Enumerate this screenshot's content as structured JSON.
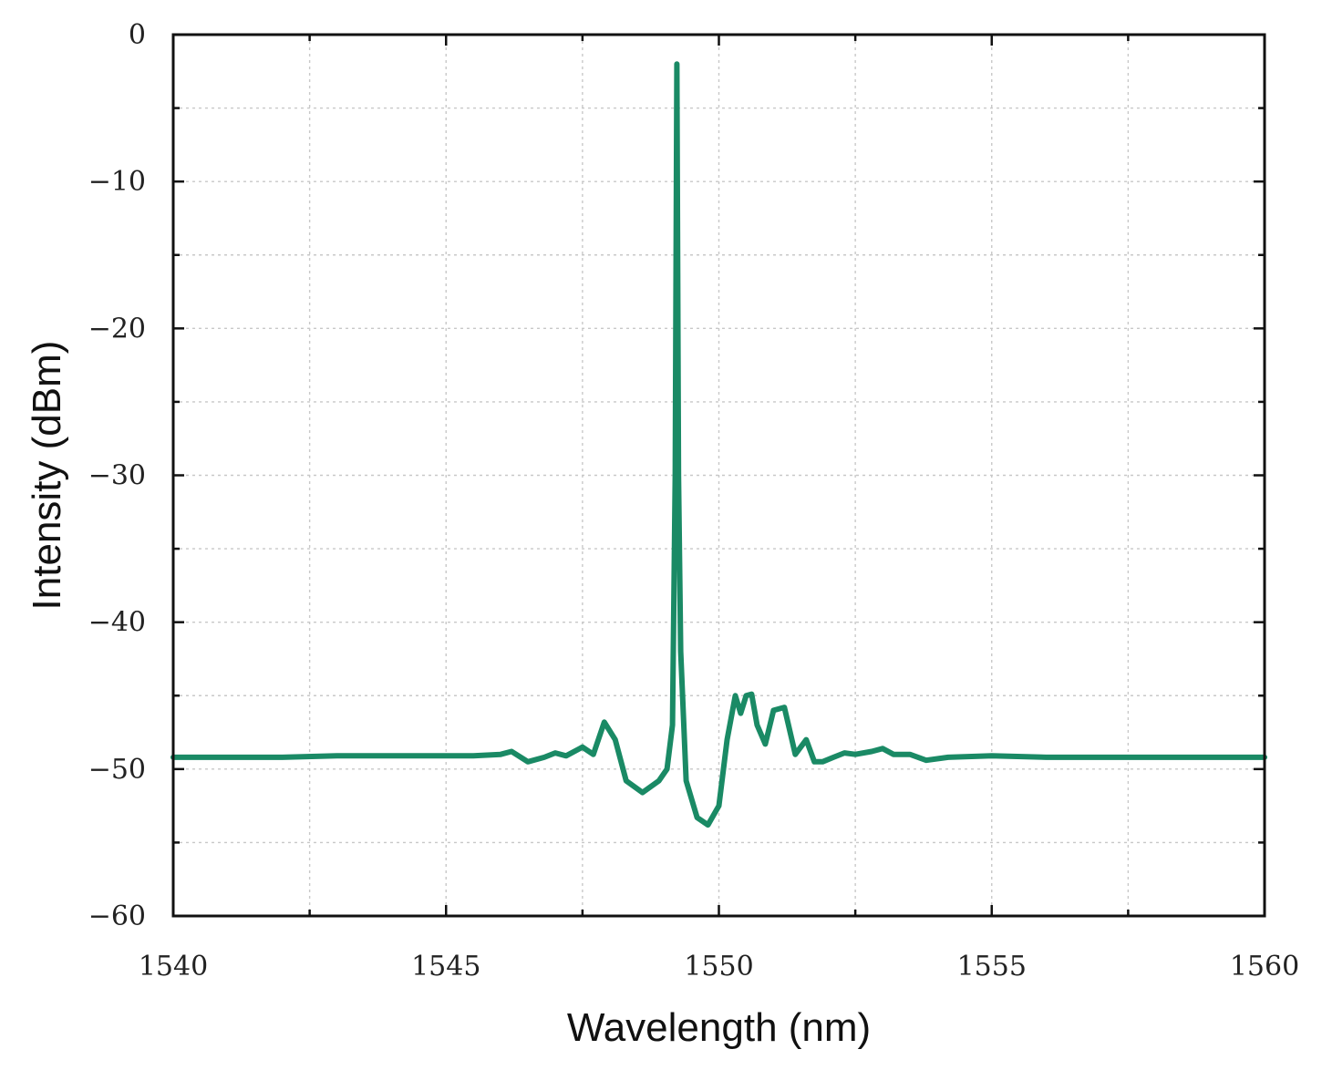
{
  "chart_data": {
    "type": "line",
    "title": "",
    "xlabel": "Wavelength (nm)",
    "ylabel": "Intensity (dBm)",
    "xlim": [
      1540,
      1560
    ],
    "ylim": [
      -60,
      0
    ],
    "x_ticks": [
      1540,
      1545,
      1550,
      1555,
      1560
    ],
    "x_tick_labels": [
      "1540",
      "1545",
      "1550",
      "1555",
      "1560"
    ],
    "y_ticks": [
      0,
      -10,
      -20,
      -30,
      -40,
      -50,
      -60
    ],
    "y_tick_labels": [
      "0",
      "−10",
      "−20",
      "−30",
      "−40",
      "−50",
      "−60"
    ],
    "grid": true,
    "line_color": "#1a8a65",
    "series": [
      {
        "x": [
          1540,
          1541,
          1542,
          1543,
          1544,
          1545,
          1545.5,
          1546.0,
          1546.2,
          1546.5,
          1546.8,
          1547.0,
          1547.2,
          1547.5,
          1547.7,
          1547.9,
          1548.1,
          1548.3,
          1548.6,
          1548.9,
          1549.05,
          1549.15,
          1549.2,
          1549.23,
          1549.26,
          1549.3,
          1549.4,
          1549.6,
          1549.8,
          1550.0,
          1550.15,
          1550.3,
          1550.4,
          1550.5,
          1550.6,
          1550.7,
          1550.85,
          1551.0,
          1551.2,
          1551.4,
          1551.6,
          1551.75,
          1551.9,
          1552.1,
          1552.3,
          1552.5,
          1552.8,
          1553.0,
          1553.2,
          1553.5,
          1553.8,
          1554.2,
          1555.0,
          1556.0,
          1557.0,
          1558.0,
          1559.0,
          1560.0
        ],
        "y": [
          -49.2,
          -49.2,
          -49.2,
          -49.1,
          -49.1,
          -49.1,
          -49.1,
          -49.0,
          -48.8,
          -49.5,
          -49.2,
          -48.9,
          -49.1,
          -48.5,
          -49.0,
          -46.8,
          -48.0,
          -50.8,
          -51.6,
          -50.8,
          -50.0,
          -47.0,
          -30.0,
          -2.0,
          -30.0,
          -42.0,
          -50.8,
          -53.3,
          -53.8,
          -52.5,
          -48.0,
          -45.0,
          -46.2,
          -45.0,
          -44.9,
          -47.0,
          -48.3,
          -46.0,
          -45.8,
          -49.0,
          -48.0,
          -49.5,
          -49.5,
          -49.2,
          -48.9,
          -49.0,
          -48.8,
          -48.6,
          -49.0,
          -49.0,
          -49.4,
          -49.2,
          -49.1,
          -49.2,
          -49.2,
          -49.2,
          -49.2,
          -49.2
        ]
      }
    ]
  }
}
